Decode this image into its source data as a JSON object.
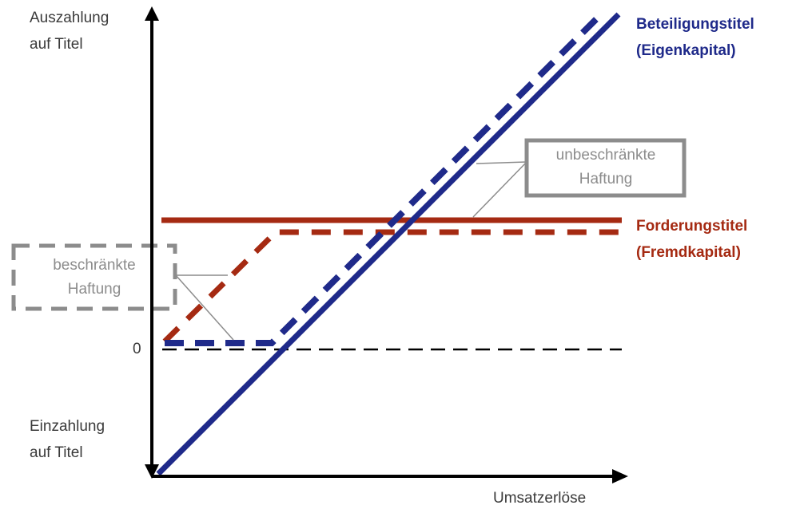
{
  "y_axis": {
    "top_label": [
      "Auszahlung",
      "auf Titel"
    ],
    "bottom_label": [
      "Einzahlung",
      "auf Titel"
    ],
    "zero_label": "0"
  },
  "x_axis": {
    "label": "Umsatzerlöse"
  },
  "equity": {
    "label_line1": "Beteiligungstitel",
    "label_line2": "(Eigenkapital)",
    "color": "#1f2a8a"
  },
  "debt": {
    "label_line1": "Forderungstitel",
    "label_line2": "(Fremdkapital)",
    "color": "#a52a12"
  },
  "unlimited_liability": {
    "line1": "unbeschränkte",
    "line2": "Haftung"
  },
  "limited_liability": {
    "line1": "beschränkte",
    "line2": "Haftung"
  },
  "colors": {
    "axis": "#000000",
    "grey": "#8c8c8c"
  }
}
